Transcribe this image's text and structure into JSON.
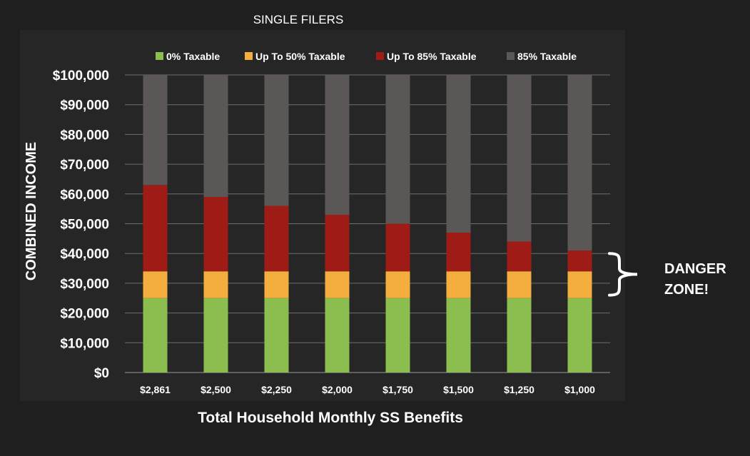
{
  "chart_data": {
    "type": "bar",
    "stacked": true,
    "title": "SINGLE FILERS",
    "xlabel": "Total Household Monthly SS Benefits",
    "ylabel": "COMBINED INCOME",
    "ylim": [
      0,
      100000
    ],
    "yticks": [
      "$0",
      "$10,000",
      "$20,000",
      "$30,000",
      "$40,000",
      "$50,000",
      "$60,000",
      "$70,000",
      "$80,000",
      "$90,000",
      "$100,000"
    ],
    "categories": [
      "$2,861",
      "$2,500",
      "$2,250",
      "$2,000",
      "$1,750",
      "$1,500",
      "$1,250",
      "$1,000"
    ],
    "grid": true,
    "legend_position": "top",
    "series": [
      {
        "name": "0% Taxable",
        "color": "#8bbd4f",
        "values": [
          25000,
          25000,
          25000,
          25000,
          25000,
          25000,
          25000,
          25000
        ]
      },
      {
        "name": "Up To 50% Taxable",
        "color": "#f3ae3e",
        "values": [
          9000,
          9000,
          9000,
          9000,
          9000,
          9000,
          9000,
          9000
        ]
      },
      {
        "name": "Up To 85% Taxable",
        "color": "#9e1c15",
        "values": [
          29000,
          25000,
          22000,
          19000,
          16000,
          13000,
          10000,
          7000
        ]
      },
      {
        "name": "85% Taxable",
        "color": "#5a5756",
        "values": [
          37000,
          41000,
          44000,
          47000,
          50000,
          53000,
          56000,
          59000
        ]
      }
    ],
    "annotation": {
      "text_lines": [
        "DANGER",
        "ZONE!"
      ],
      "range": [
        26000,
        40000
      ]
    }
  }
}
